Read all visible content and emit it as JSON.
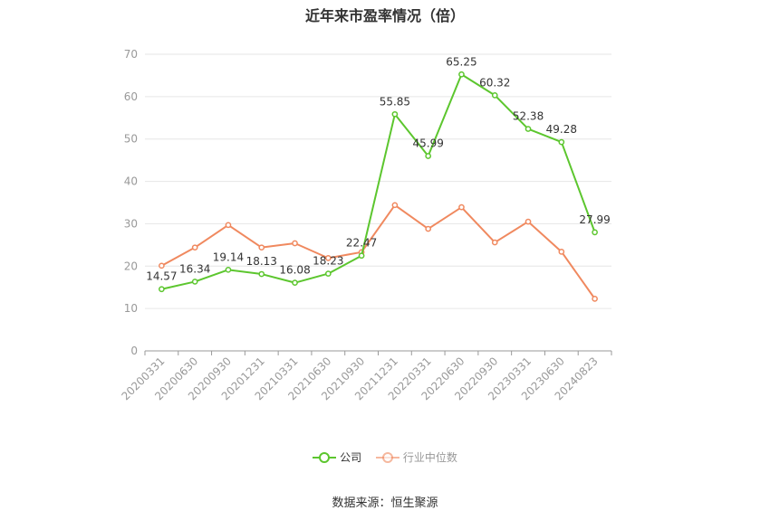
{
  "title": "近年来市盈率情况（倍）",
  "source": "数据来源：恒生聚源",
  "colors": {
    "company": "#5cc62e",
    "industry": "#f0895f",
    "axis": "#999999",
    "grid": "#e6e6e6",
    "text": "#333333"
  },
  "chart_data": {
    "type": "line",
    "categories": [
      "20200331",
      "20200630",
      "20200930",
      "20201231",
      "20210331",
      "20210630",
      "20210930",
      "20211231",
      "20220331",
      "20220630",
      "20220930",
      "20230331",
      "20230630",
      "20240823"
    ],
    "ylim": [
      0,
      70
    ],
    "yticks": [
      0,
      10,
      20,
      30,
      40,
      50,
      60,
      70
    ],
    "grid": true,
    "legend_position": "bottom",
    "series": [
      {
        "name": "公司",
        "color": "#5cc62e",
        "show_labels": true,
        "values": [
          14.57,
          16.34,
          19.14,
          18.13,
          16.08,
          18.23,
          22.47,
          55.85,
          45.99,
          65.25,
          60.32,
          52.38,
          49.28,
          27.99
        ]
      },
      {
        "name": "行业中位数",
        "color": "#f0895f",
        "show_labels": false,
        "values": [
          20.1,
          24.4,
          29.7,
          24.4,
          25.4,
          21.9,
          23.3,
          34.4,
          28.8,
          33.9,
          25.6,
          30.5,
          23.4,
          12.3
        ]
      }
    ]
  },
  "legend": {
    "company": "公司",
    "industry": "行业中位数"
  }
}
